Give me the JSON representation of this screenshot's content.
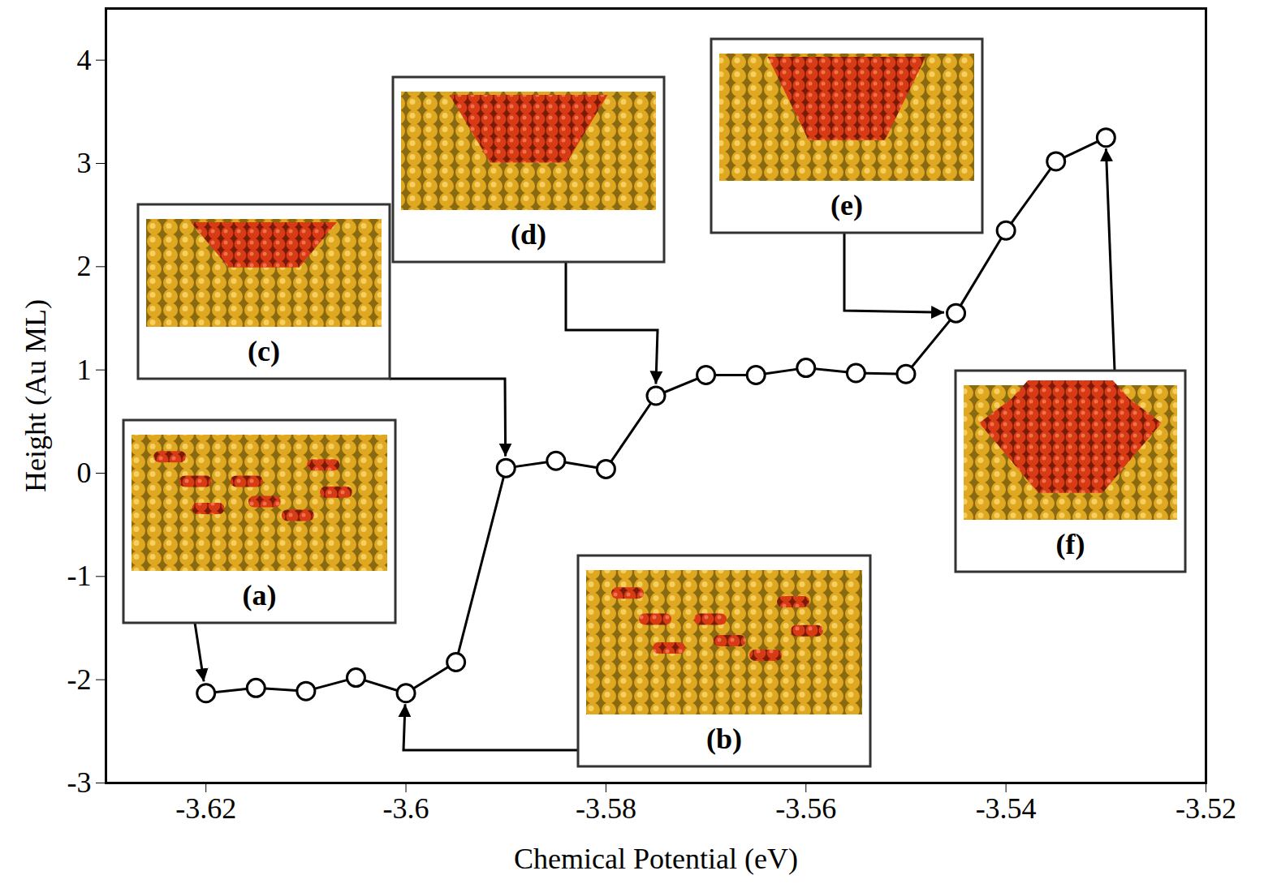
{
  "chart_data": {
    "type": "line",
    "xlabel": "Chemical Potential (eV)",
    "ylabel": "Height (Au ML)",
    "x": [
      -3.62,
      -3.615,
      -3.61,
      -3.605,
      -3.6,
      -3.595,
      -3.59,
      -3.585,
      -3.58,
      -3.575,
      -3.57,
      -3.565,
      -3.56,
      -3.555,
      -3.55,
      -3.545,
      -3.54,
      -3.535,
      -3.53
    ],
    "values": [
      -2.13,
      -2.08,
      -2.11,
      -1.98,
      -2.13,
      -1.83,
      0.05,
      0.12,
      0.04,
      0.75,
      0.95,
      0.95,
      1.02,
      0.97,
      0.96,
      1.55,
      2.35,
      3.02,
      3.25
    ],
    "color": "#000000",
    "marker": "circle",
    "xlim": [
      -3.63,
      -3.52
    ],
    "ylim": [
      -3,
      4.5
    ],
    "xticks": [
      -3.62,
      -3.6,
      -3.58,
      -3.56,
      -3.54,
      -3.52
    ],
    "yticks": [
      -3,
      -2,
      -1,
      0,
      1,
      2,
      3,
      4
    ],
    "annotations": [
      {
        "text": "(a)",
        "x": -3.62
      },
      {
        "text": "(b)",
        "x": -3.6
      },
      {
        "text": "(c)",
        "x": -3.59
      },
      {
        "text": "(d)",
        "x": -3.575
      },
      {
        "text": "(e)",
        "x": -3.545
      },
      {
        "text": "(f)",
        "x": -3.53
      }
    ]
  }
}
